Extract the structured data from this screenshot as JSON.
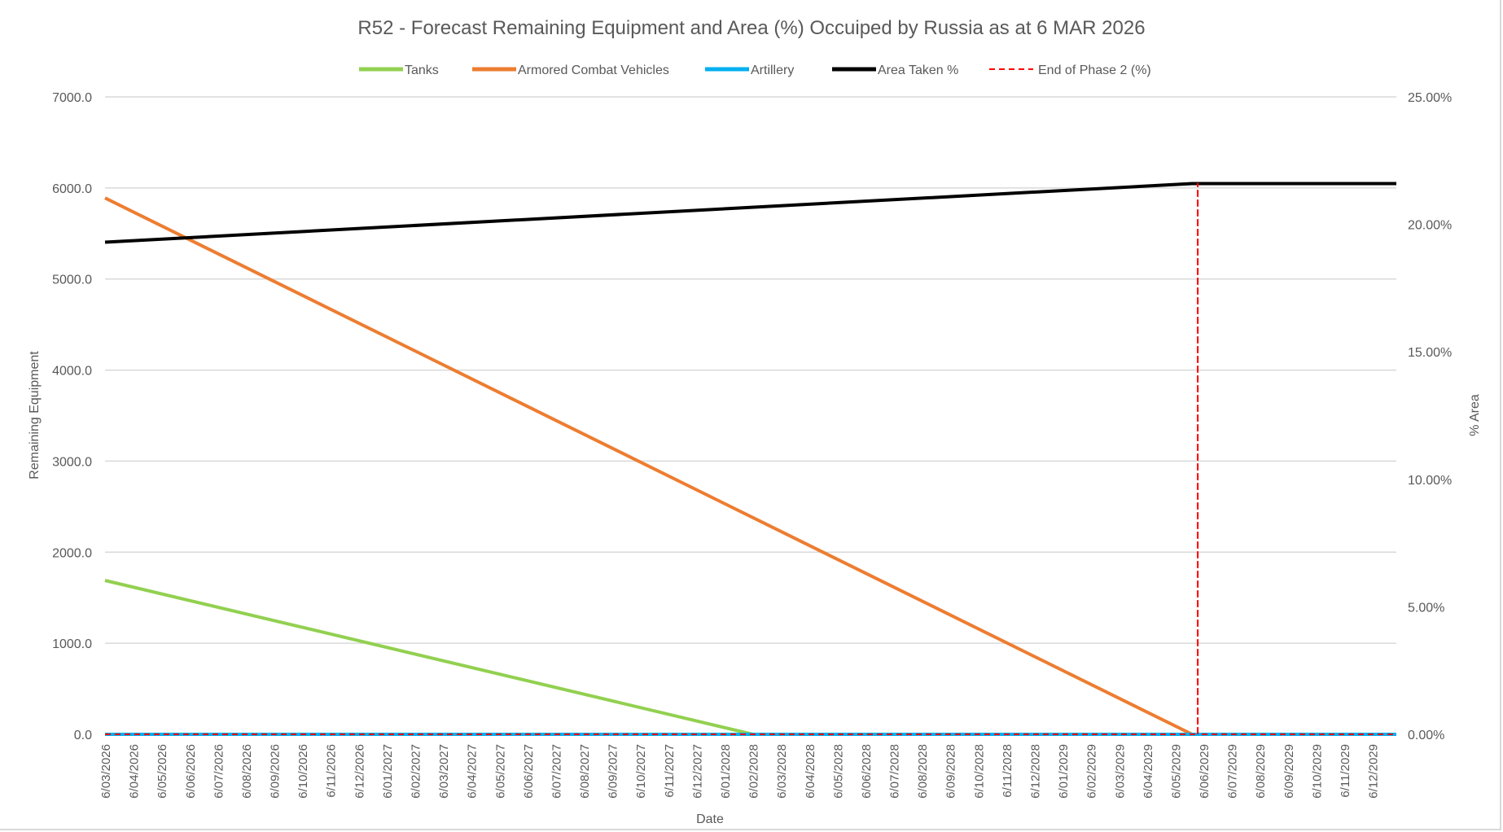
{
  "chart_data": {
    "type": "line",
    "title": "R52 - Forecast Remaining Equipment and Area (%) Occuiped by Russia as at 6 MAR 2026",
    "xlabel": "Date",
    "ylabel": "Remaining Equipment",
    "y2label": "% Area",
    "ylim": [
      0,
      7000
    ],
    "yticks": [
      "0.0",
      "1000.0",
      "2000.0",
      "3000.0",
      "4000.0",
      "5000.0",
      "6000.0",
      "7000.0"
    ],
    "y2lim": [
      0,
      25
    ],
    "y2ticks": [
      "0.00%",
      "5.00%",
      "10.00%",
      "15.00%",
      "20.00%",
      "25.00%"
    ],
    "grid": true,
    "legend_position": "top",
    "x_units": "months since 6/03/2026",
    "xlim": [
      0,
      45.85
    ],
    "categories": [
      "6/03/2026",
      "6/04/2026",
      "6/05/2026",
      "6/06/2026",
      "6/07/2026",
      "6/08/2026",
      "6/09/2026",
      "6/10/2026",
      "6/11/2026",
      "6/12/2026",
      "6/01/2027",
      "6/02/2027",
      "6/03/2027",
      "6/04/2027",
      "6/05/2027",
      "6/06/2027",
      "6/07/2027",
      "6/08/2027",
      "6/09/2027",
      "6/10/2027",
      "6/11/2027",
      "6/12/2027",
      "6/01/2028",
      "6/02/2028",
      "6/03/2028",
      "6/04/2028",
      "6/05/2028",
      "6/06/2028",
      "6/07/2028",
      "6/08/2028",
      "6/09/2028",
      "6/10/2028",
      "6/11/2028",
      "6/12/2028",
      "6/01/2029",
      "6/02/2029",
      "6/03/2029",
      "6/04/2029",
      "6/05/2029",
      "6/06/2029",
      "6/07/2029",
      "6/08/2029",
      "6/09/2029",
      "6/10/2029",
      "6/11/2029",
      "6/12/2029"
    ],
    "series": [
      {
        "name": "Tanks",
        "color": "#92d050",
        "axis": "left",
        "dash": false,
        "points": [
          [
            0,
            1690
          ],
          [
            23.0,
            0
          ],
          [
            45.85,
            0
          ]
        ]
      },
      {
        "name": "Armored Combat Vehicles",
        "color": "#ed7d31",
        "axis": "left",
        "dash": false,
        "points": [
          [
            0,
            5890
          ],
          [
            38.6,
            0
          ],
          [
            45.85,
            0
          ]
        ]
      },
      {
        "name": "Artillery",
        "color": "#00b0f0",
        "axis": "left",
        "dash": false,
        "points": [
          [
            0,
            0
          ],
          [
            45.85,
            0
          ]
        ]
      },
      {
        "name": "Area Taken %",
        "color": "#000000",
        "axis": "right",
        "dash": false,
        "points": [
          [
            0,
            19.3
          ],
          [
            38.6,
            21.6
          ],
          [
            45.85,
            21.6
          ]
        ]
      },
      {
        "name": "End of Phase 2 (%)",
        "color": "#ff0000",
        "axis": "right",
        "dash": true,
        "points": [
          [
            0,
            0
          ],
          [
            38.8,
            0
          ],
          [
            38.8,
            21.6
          ],
          [
            38.8,
            0
          ],
          [
            45.85,
            0
          ]
        ]
      }
    ]
  }
}
